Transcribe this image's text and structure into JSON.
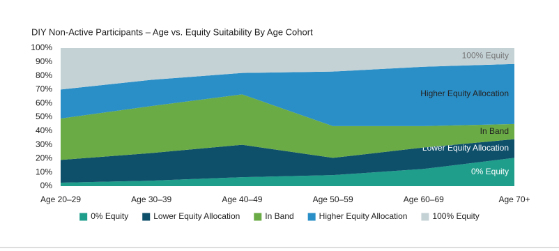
{
  "chart_data": {
    "type": "stacked_area",
    "title": "DIY Non-Active Participants – Age vs. Equity Suitability By Age Cohort",
    "categories": [
      "Age 20–29",
      "Age 30–39",
      "Age 40–49",
      "Age 50–59",
      "Age 60–69",
      "Age 70+"
    ],
    "series": [
      {
        "name": "0% Equity",
        "color": "#1f9e8c",
        "values": [
          2.5,
          4,
          6.5,
          8,
          12.5,
          20.5
        ]
      },
      {
        "name": "Lower Equity Allocation",
        "color": "#0e4f6a",
        "values": [
          16.5,
          20,
          23.5,
          12.5,
          15.5,
          13.5
        ]
      },
      {
        "name": "In Band",
        "color": "#6aab46",
        "values": [
          30,
          34,
          36.5,
          23,
          15.5,
          11
        ]
      },
      {
        "name": "Higher Equity Allocation",
        "color": "#2b8fc7",
        "values": [
          21,
          19,
          15.5,
          39.5,
          43,
          43.5
        ]
      },
      {
        "name": "100% Equity",
        "color": "#c4d2d6",
        "values": [
          30,
          23,
          18,
          17,
          13.5,
          11.5
        ]
      }
    ],
    "ylim": [
      0,
      100
    ],
    "yticks": [
      {
        "value": 0,
        "label": "0%"
      },
      {
        "value": 10,
        "label": "10%"
      },
      {
        "value": 20,
        "label": "20%"
      },
      {
        "value": 30,
        "label": "30%"
      },
      {
        "value": 40,
        "label": "40%"
      },
      {
        "value": 50,
        "label": "50%"
      },
      {
        "value": 60,
        "label": "60%"
      },
      {
        "value": 70,
        "label": "70%"
      },
      {
        "value": 80,
        "label": "80%"
      },
      {
        "value": 90,
        "label": "90%"
      },
      {
        "value": 100,
        "label": "100%"
      }
    ],
    "grid": false,
    "legend": "bottom"
  }
}
